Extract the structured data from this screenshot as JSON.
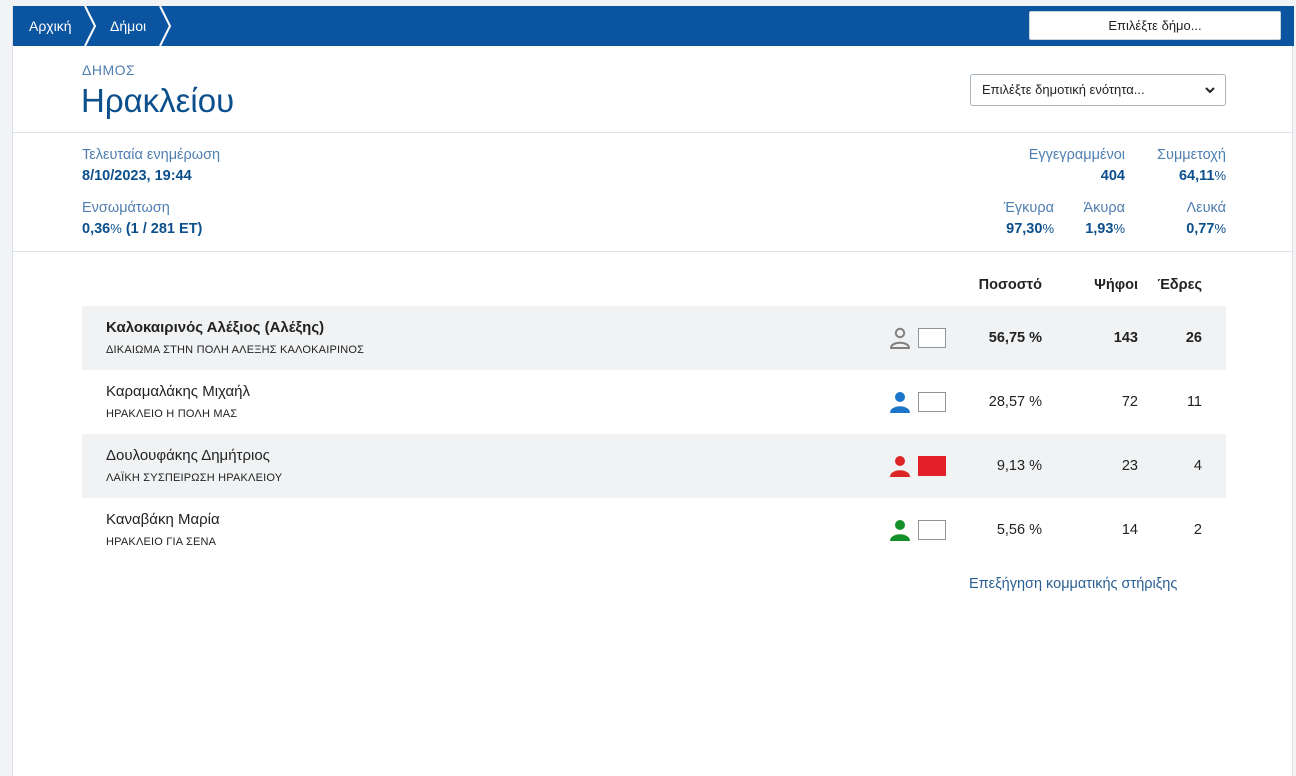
{
  "breadcrumb": {
    "home": "Αρχική",
    "municipalities": "Δήμοι"
  },
  "header": {
    "select_municipality": "Επιλέξτε δήμο...",
    "type_label": "ΔΗΜΟΣ",
    "title": "Ηρακλείου",
    "unit_select": "Επιλέξτε δημοτική ενότητα..."
  },
  "stats": {
    "last_update_label": "Τελευταία ενημέρωση",
    "last_update_value": "8/10/2023, 19:44",
    "integration_label": "Ενσωμάτωση",
    "integration_pct": "0,36",
    "integration_detail": "(1 / 281 ΕΤ)",
    "registered_label": "Εγγεγραμμένοι",
    "registered_value": "404",
    "turnout_label": "Συμμετοχή",
    "turnout_value": "64,11",
    "valid_label": "Έγκυρα",
    "valid_value": "97,30",
    "invalid_label": "Άκυρα",
    "invalid_value": "1,93",
    "blank_label": "Λευκά",
    "blank_value": "0,77",
    "pct_sign": "%"
  },
  "table": {
    "headers": {
      "percent": "Ποσοστό",
      "votes": "Ψήφοι",
      "seats": "Έδρες"
    },
    "rows": [
      {
        "name": "Καλοκαιρινός Αλέξιος (Αλέξης)",
        "party": "ΔΙΚΑΙΩΜΑ ΣΤΗΝ ΠΟΛΗ ΑΛΕΞΗΣ ΚΑΛΟΚΑΙΡΙΝΟΣ",
        "percent": "56,75 %",
        "votes": "143",
        "seats": "26",
        "icon_color": "#808080",
        "support_color": "#ffffff"
      },
      {
        "name": "Καραμαλάκης Μιχαήλ",
        "party": "ΗΡΑΚΛΕΙΟ Η ΠΟΛΗ ΜΑΣ",
        "percent": "28,57 %",
        "votes": "72",
        "seats": "11",
        "icon_color": "#1c75c8",
        "support_color": "#ffffff"
      },
      {
        "name": "Δουλουφάκης Δημήτριος",
        "party": "ΛΑΪΚΗ ΣΥΣΠΕΙΡΩΣΗ ΗΡΑΚΛΕΙΟΥ",
        "percent": "9,13 %",
        "votes": "23",
        "seats": "4",
        "icon_color": "#dc2626",
        "support_color": "#e3202a"
      },
      {
        "name": "Καναβάκη Μαρία",
        "party": "ΗΡΑΚΛΕΙΟ ΓΙΑ ΣΕΝΑ",
        "percent": "5,56 %",
        "votes": "14",
        "seats": "2",
        "icon_color": "#13902a",
        "support_color": "#ffffff"
      }
    ]
  },
  "explain_link": "Επεξήγηση κομματικής στήριξης"
}
